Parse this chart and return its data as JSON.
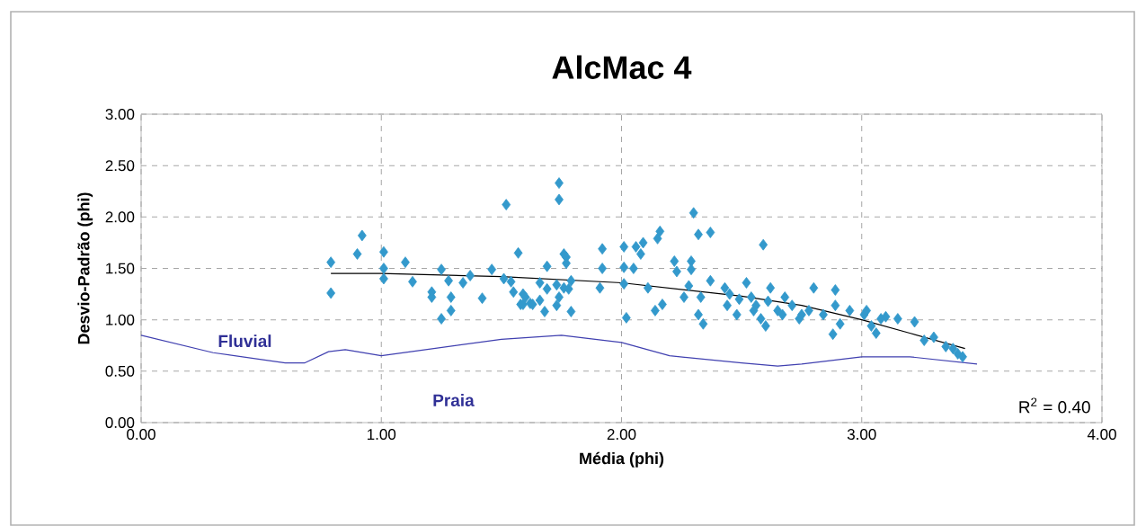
{
  "chart_data": {
    "type": "scatter",
    "title": "AlcMac 4",
    "xlabel": "Média (phi)",
    "ylabel": "Desvio-Padrão (phi)",
    "xlim": [
      0,
      4
    ],
    "ylim": [
      0,
      3
    ],
    "xticks": [
      {
        "value": 0,
        "label": "0.00"
      },
      {
        "value": 1,
        "label": "1.00"
      },
      {
        "value": 2,
        "label": "2.00"
      },
      {
        "value": 3,
        "label": "3.00"
      },
      {
        "value": 4,
        "label": "4.00"
      }
    ],
    "yticks": [
      {
        "value": 0,
        "label": "0.00"
      },
      {
        "value": 0.5,
        "label": "0.50"
      },
      {
        "value": 1,
        "label": "1.00"
      },
      {
        "value": 1.5,
        "label": "1.50"
      },
      {
        "value": 2,
        "label": "2.00"
      },
      {
        "value": 2.5,
        "label": "2.50"
      },
      {
        "value": 3,
        "label": "3.00"
      }
    ],
    "grid": true,
    "series": [
      {
        "marker": "diamond",
        "color": "#3399cc",
        "x": [
          0.79,
          0.79,
          0.9,
          0.92,
          1.01,
          1.01,
          1.01,
          1.1,
          1.13,
          1.21,
          1.21,
          1.25,
          1.25,
          1.28,
          1.29,
          1.29,
          1.34,
          1.37,
          1.42,
          1.46,
          1.52,
          1.51,
          1.54,
          1.55,
          1.57,
          1.58,
          1.59,
          1.6,
          1.62,
          1.59,
          1.63,
          1.66,
          1.69,
          1.69,
          1.66,
          1.68,
          1.73,
          1.74,
          1.74,
          1.74,
          1.76,
          1.76,
          1.77,
          1.77,
          1.78,
          1.79,
          1.79,
          1.73,
          1.91,
          1.92,
          1.92,
          2.01,
          2.01,
          2.01,
          2.02,
          2.05,
          2.06,
          2.09,
          2.08,
          2.11,
          2.15,
          2.16,
          2.14,
          2.17,
          2.22,
          2.23,
          2.26,
          2.28,
          2.3,
          2.32,
          2.37,
          2.37,
          2.29,
          2.29,
          2.33,
          2.34,
          2.32,
          2.59,
          2.43,
          2.44,
          2.48,
          2.52,
          2.54,
          2.55,
          2.58,
          2.61,
          2.62,
          2.65,
          2.68,
          2.71,
          2.74,
          2.78,
          2.8,
          2.84,
          2.89,
          2.89,
          2.88,
          2.91,
          2.95,
          3.01,
          3.02,
          3.04,
          3.06,
          3.08,
          3.1,
          3.15,
          3.22,
          3.26,
          3.3,
          3.35,
          3.38,
          3.4,
          3.42,
          2.49,
          2.56,
          2.45,
          2.6,
          2.67,
          2.75
        ],
        "values": [
          1.56,
          1.26,
          1.64,
          1.82,
          1.66,
          1.5,
          1.4,
          1.56,
          1.37,
          1.22,
          1.27,
          1.49,
          1.01,
          1.38,
          1.22,
          1.09,
          1.36,
          1.43,
          1.21,
          1.49,
          2.12,
          1.4,
          1.37,
          1.27,
          1.65,
          1.15,
          1.25,
          1.22,
          1.16,
          1.15,
          1.15,
          1.36,
          1.3,
          1.52,
          1.19,
          1.08,
          1.34,
          2.33,
          2.17,
          1.22,
          1.31,
          1.64,
          1.55,
          1.61,
          1.3,
          1.08,
          1.38,
          1.14,
          1.31,
          1.5,
          1.69,
          1.71,
          1.51,
          1.35,
          1.02,
          1.5,
          1.71,
          1.75,
          1.64,
          1.31,
          1.79,
          1.86,
          1.09,
          1.15,
          1.57,
          1.47,
          1.22,
          1.33,
          2.04,
          1.83,
          1.85,
          1.38,
          1.57,
          1.49,
          1.22,
          0.96,
          1.05,
          1.73,
          1.31,
          1.14,
          1.05,
          1.36,
          1.22,
          1.09,
          1.01,
          1.18,
          1.31,
          1.09,
          1.22,
          1.14,
          1.01,
          1.09,
          1.31,
          1.05,
          1.29,
          1.14,
          0.86,
          0.96,
          1.09,
          1.05,
          1.09,
          0.94,
          0.87,
          1.01,
          1.03,
          1.01,
          0.98,
          0.8,
          0.83,
          0.74,
          0.72,
          0.67,
          0.64,
          1.2,
          1.14,
          1.25,
          0.94,
          1.05,
          1.05
        ]
      },
      {
        "type": "line",
        "marker": "none",
        "color": "#000000",
        "x": [
          0.79,
          1.0,
          1.5,
          2.0,
          2.5,
          2.75,
          3.0,
          3.2,
          3.43
        ],
        "values": [
          1.45,
          1.45,
          1.42,
          1.36,
          1.23,
          1.14,
          1.0,
          0.87,
          0.72
        ]
      },
      {
        "type": "line",
        "marker": "none",
        "color": "#4040b0",
        "x": [
          0,
          0.3,
          0.6,
          0.68,
          0.78,
          0.85,
          1.0,
          1.5,
          1.75,
          2.0,
          2.2,
          2.5,
          2.65,
          2.75,
          3.0,
          3.2,
          3.48
        ],
        "values": [
          0.85,
          0.68,
          0.58,
          0.58,
          0.69,
          0.71,
          0.65,
          0.81,
          0.85,
          0.78,
          0.65,
          0.58,
          0.55,
          0.57,
          0.64,
          0.64,
          0.57
        ]
      }
    ],
    "annotations": [
      "Fluvial",
      "Praia",
      "R$^{2}$ = 0.40"
    ]
  }
}
